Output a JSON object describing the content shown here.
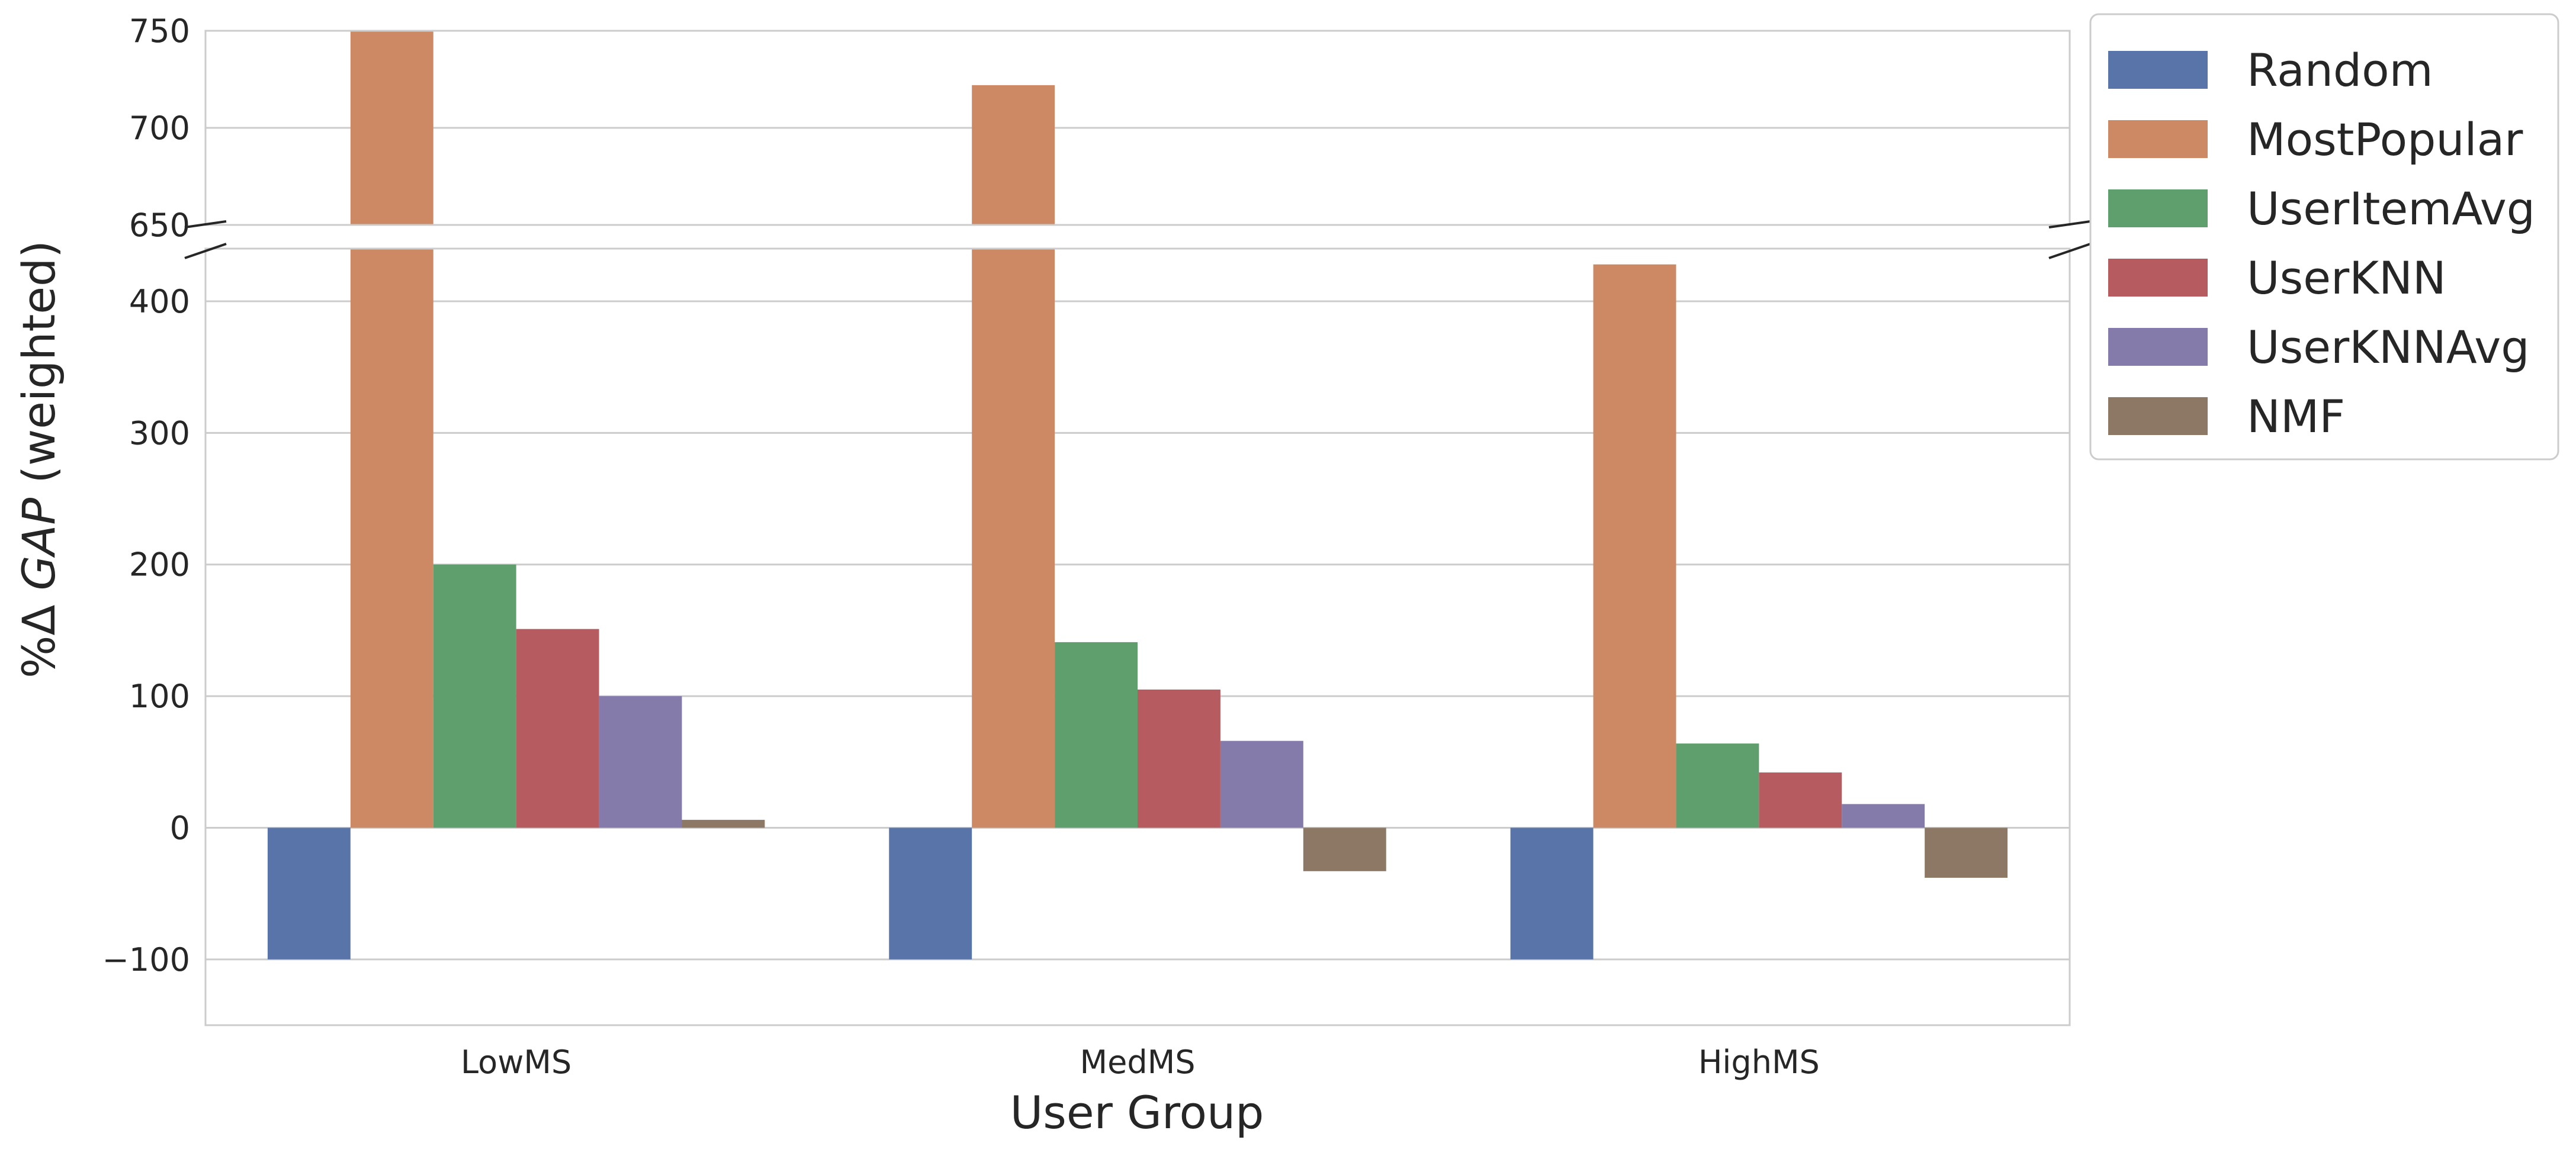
{
  "chart_data": {
    "type": "bar",
    "broken_axis": true,
    "title": "",
    "xlabel": "User Group",
    "ylabel_prefix": "%Δ ",
    "ylabel_italic": "GAP",
    "ylabel_suffix": " (weighted)",
    "categories": [
      "LowMS",
      "MedMS",
      "HighMS"
    ],
    "upper_ylim": [
      650,
      750
    ],
    "upper_ticks": [
      650,
      700,
      750
    ],
    "upper_tick_labels": [
      "650",
      "700",
      "750"
    ],
    "lower_ylim": [
      -150,
      440
    ],
    "lower_ticks": [
      -100,
      0,
      100,
      200,
      300,
      400
    ],
    "lower_tick_labels": [
      "−100",
      "0",
      "100",
      "200",
      "300",
      "400"
    ],
    "grid": true,
    "legend_position": "outside-top-right",
    "series": [
      {
        "name": "Random",
        "color": "#5874a8",
        "values": [
          -100,
          -100,
          -100
        ]
      },
      {
        "name": "MostPopular",
        "color": "#cd8963",
        "values": [
          750,
          722,
          428
        ]
      },
      {
        "name": "UserItemAvg",
        "color": "#5f9f6d",
        "values": [
          200,
          141,
          64
        ]
      },
      {
        "name": "UserKNN",
        "color": "#b65c60",
        "values": [
          151,
          105,
          42
        ]
      },
      {
        "name": "UserKNNAvg",
        "color": "#857bab",
        "values": [
          100,
          66,
          18
        ]
      },
      {
        "name": "NMF",
        "color": "#8c7864",
        "values": [
          6,
          -33,
          -38
        ]
      }
    ]
  }
}
